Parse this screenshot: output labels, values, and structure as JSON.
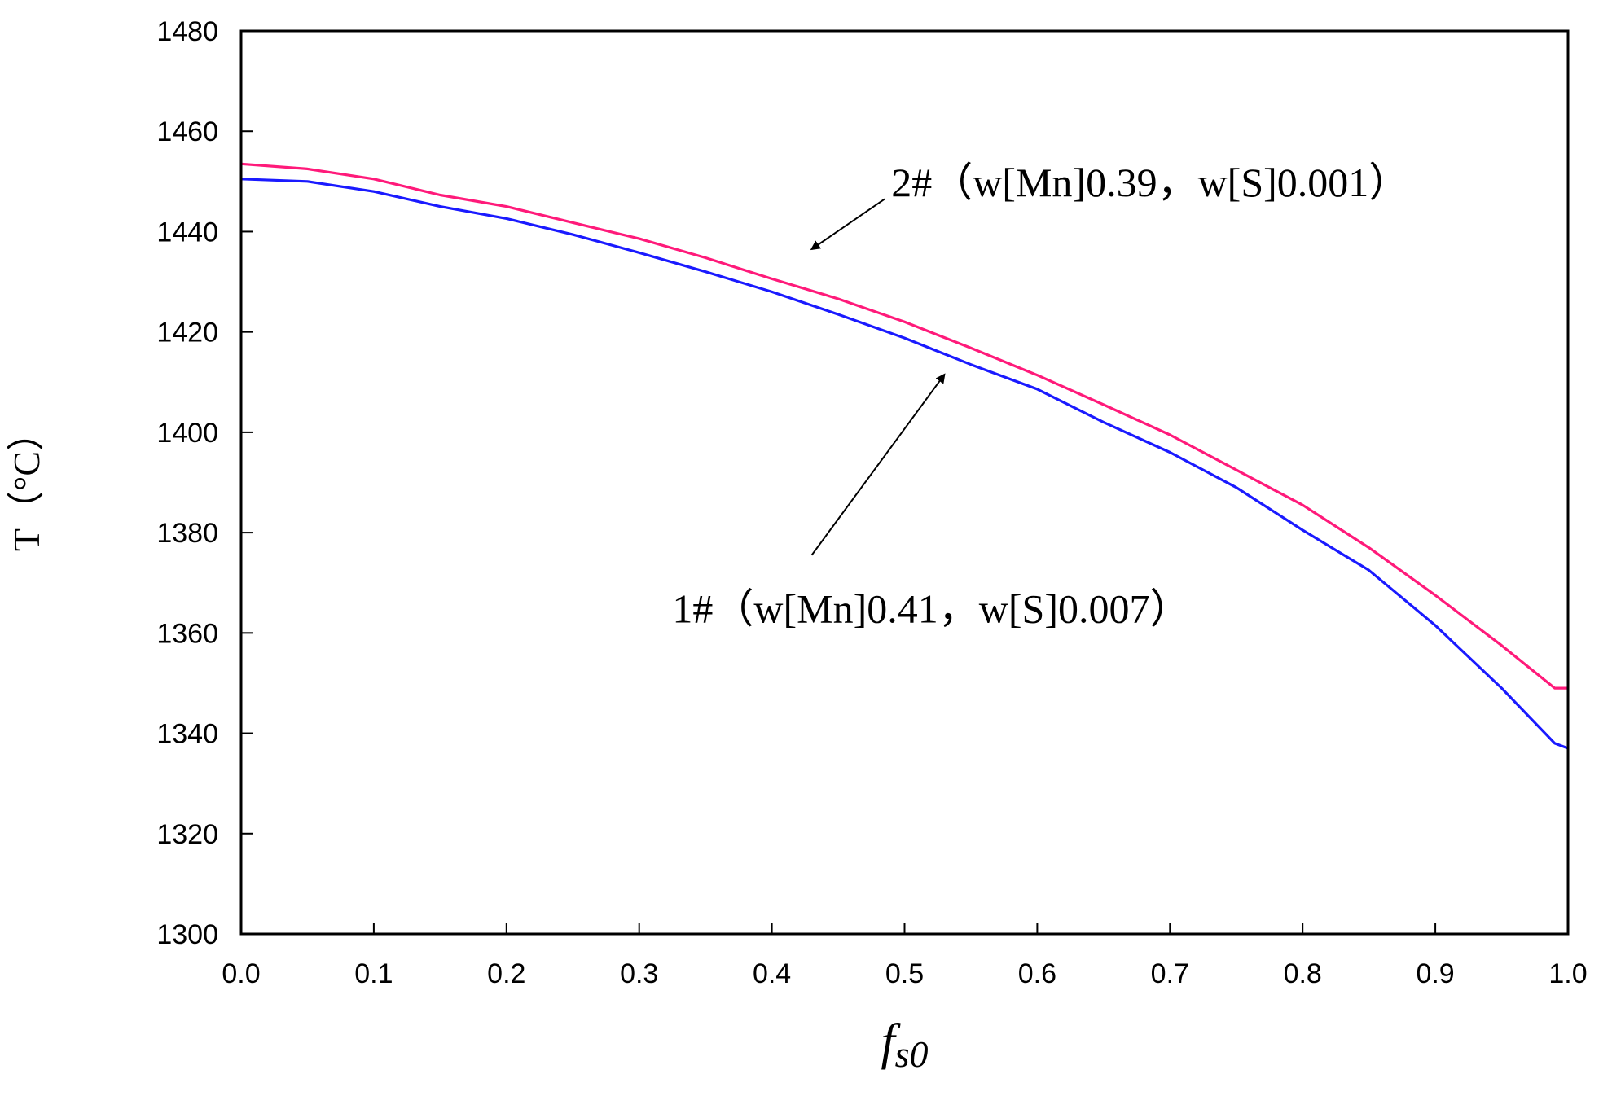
{
  "chart_data": {
    "type": "line",
    "title": "",
    "xlabel": "f",
    "xlabel_sub": "s0",
    "ylabel": "T（°C）",
    "xlim": [
      0.0,
      1.0
    ],
    "ylim": [
      1300,
      1480
    ],
    "x_ticks": [
      "0.0",
      "0.1",
      "0.2",
      "0.3",
      "0.4",
      "0.5",
      "0.6",
      "0.7",
      "0.8",
      "0.9",
      "1.0"
    ],
    "y_ticks": [
      "1300",
      "1320",
      "1340",
      "1360",
      "1380",
      "1400",
      "1420",
      "1440",
      "1460",
      "1480"
    ],
    "grid": false,
    "legend": "none",
    "series": [
      {
        "name": "2#（w[Mn]0.39，w[S]0.001）",
        "color": "#ff1a7a",
        "x": [
          0.0,
          0.05,
          0.1,
          0.15,
          0.2,
          0.25,
          0.3,
          0.35,
          0.4,
          0.45,
          0.5,
          0.55,
          0.6,
          0.65,
          0.7,
          0.75,
          0.8,
          0.85,
          0.9,
          0.95,
          0.99,
          1.0
        ],
        "y": [
          1453.5,
          1452.5,
          1450.5,
          1447.3,
          1445.0,
          1441.8,
          1438.6,
          1434.8,
          1430.6,
          1426.6,
          1422.0,
          1416.8,
          1411.4,
          1405.5,
          1399.5,
          1392.5,
          1385.5,
          1377.0,
          1367.5,
          1357.5,
          1349.0,
          1349.0
        ]
      },
      {
        "name": "1#（w[Mn]0.41，w[S]0.007）",
        "color": "#1a1aff",
        "x": [
          0.0,
          0.05,
          0.1,
          0.15,
          0.2,
          0.25,
          0.3,
          0.35,
          0.4,
          0.45,
          0.5,
          0.55,
          0.6,
          0.65,
          0.7,
          0.75,
          0.8,
          0.85,
          0.9,
          0.95,
          0.99,
          1.0
        ],
        "y": [
          1450.5,
          1450.0,
          1448.0,
          1445.0,
          1442.6,
          1439.4,
          1435.8,
          1432.0,
          1428.0,
          1423.5,
          1418.8,
          1413.5,
          1408.6,
          1402.0,
          1396.0,
          1389.0,
          1380.5,
          1372.5,
          1361.5,
          1349.0,
          1338.0,
          1337.0
        ]
      }
    ],
    "annotations": [
      {
        "text": "2#（w[Mn]0.39，w[S]0.001）",
        "x": 0.49,
        "y": 1450.0,
        "arrow_to_x": 0.43,
        "arrow_to_y": 1436.5,
        "arrow_from_x": 0.485,
        "arrow_from_y": 1446.5
      },
      {
        "text": "1#（w[Mn]0.41，w[S]0.007）",
        "x": 0.325,
        "y": 1365.0,
        "arrow_to_x": 0.53,
        "arrow_to_y": 1411.5,
        "arrow_from_x": 0.43,
        "arrow_from_y": 1375.5
      }
    ]
  }
}
